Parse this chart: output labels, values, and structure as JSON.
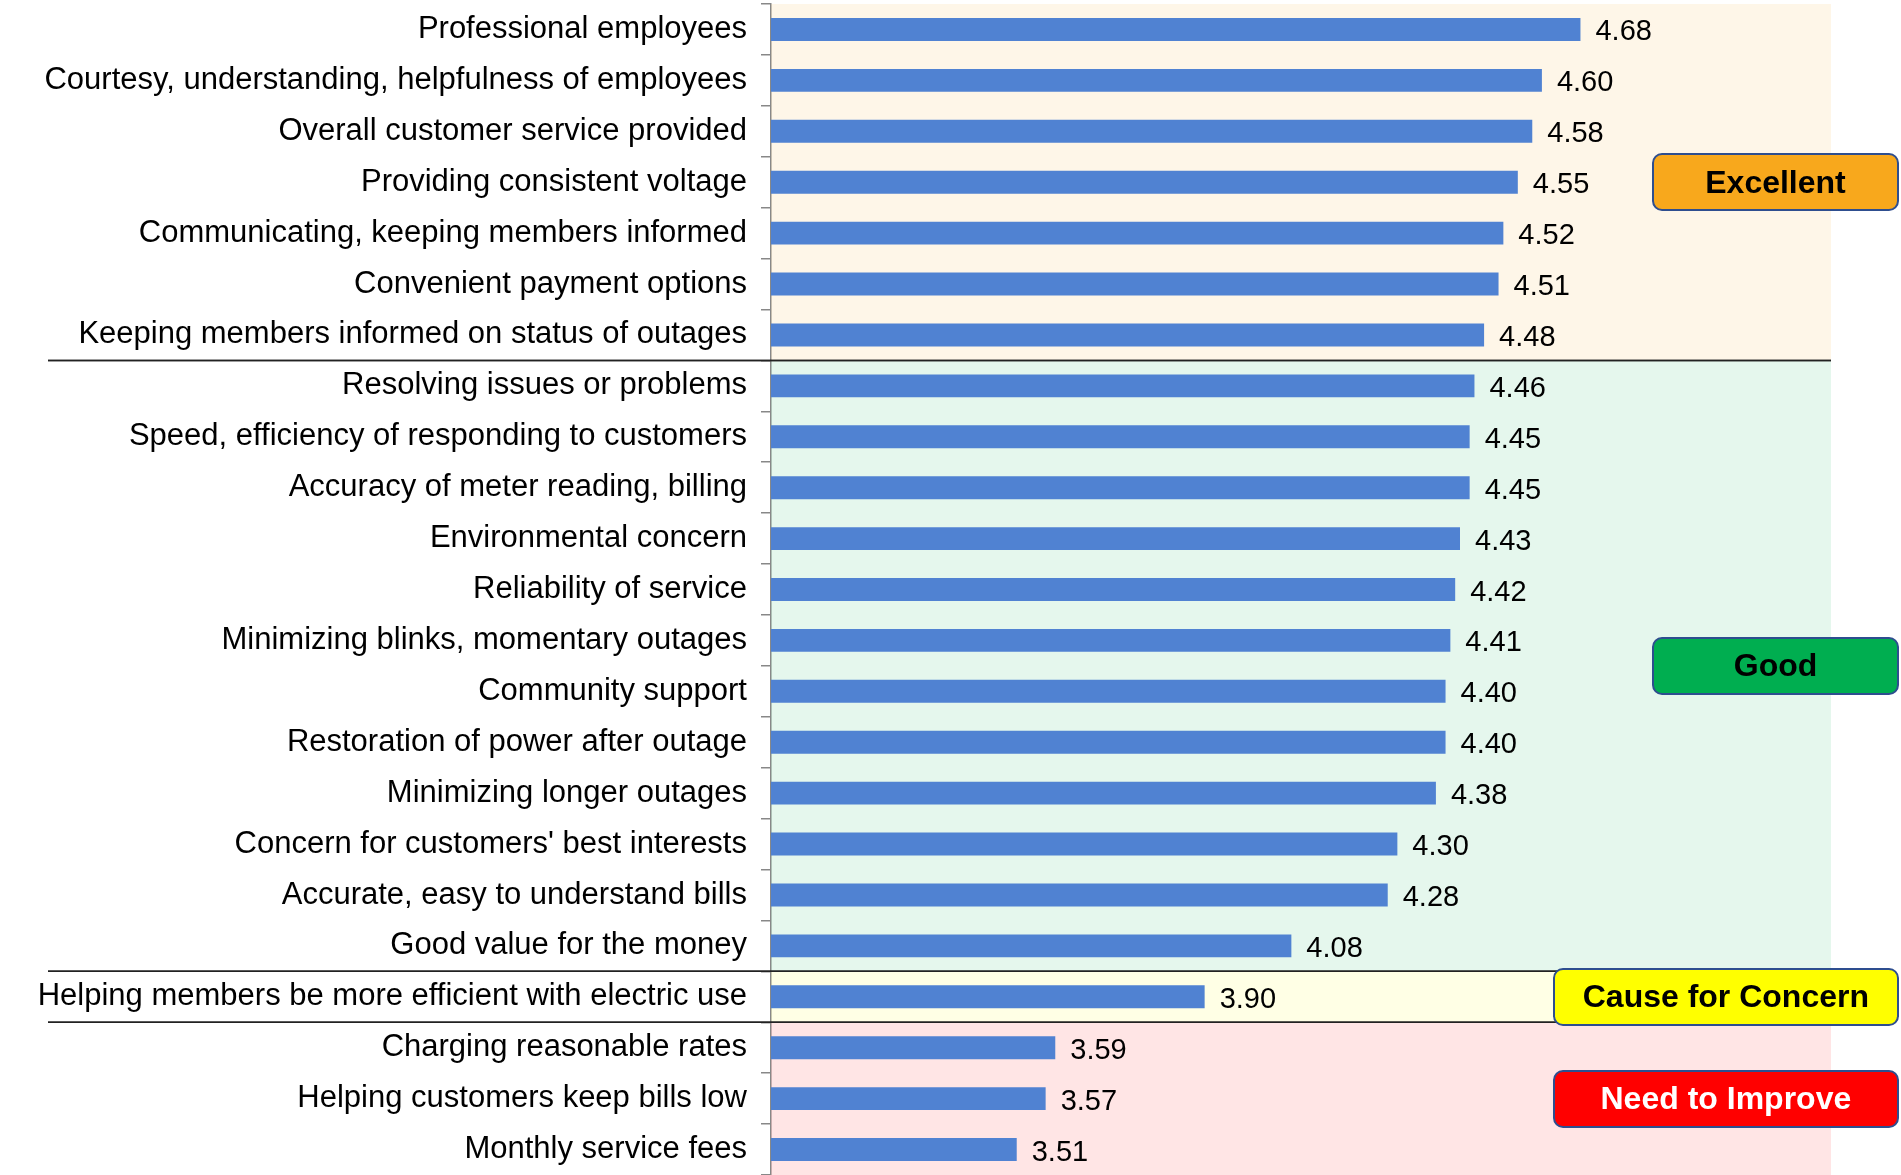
{
  "chart_data": {
    "type": "bar",
    "orientation": "horizontal",
    "categories": [
      "Professional employees",
      "Courtesy, understanding, helpfulness of employees",
      "Overall customer service provided",
      "Providing consistent voltage",
      "Communicating, keeping members informed",
      "Convenient payment options",
      "Keeping members informed on status of outages",
      "Resolving issues or problems",
      "Speed, efficiency of responding to customers",
      "Accuracy of meter reading, billing",
      "Environmental concern",
      "Reliability of service",
      "Minimizing blinks, momentary outages",
      "Community support",
      "Restoration of power after outage",
      "Minimizing longer outages",
      "Concern for customers' best interests",
      "Accurate, easy to understand bills",
      "Good value for the money",
      "Helping members be more efficient with electric use",
      "Charging reasonable rates",
      "Helping customers keep bills low",
      "Monthly service fees"
    ],
    "values": [
      4.68,
      4.6,
      4.58,
      4.55,
      4.52,
      4.51,
      4.48,
      4.46,
      4.45,
      4.45,
      4.43,
      4.42,
      4.41,
      4.4,
      4.4,
      4.38,
      4.3,
      4.28,
      4.08,
      3.9,
      3.59,
      3.57,
      3.51
    ],
    "value_labels": [
      "4.68",
      "4.60",
      "4.58",
      "4.55",
      "4.52",
      "4.51",
      "4.48",
      "4.46",
      "4.45",
      "4.45",
      "4.43",
      "4.42",
      "4.41",
      "4.40",
      "4.40",
      "4.38",
      "4.30",
      "4.28",
      "4.08",
      "3.90",
      "3.59",
      "3.57",
      "3.51"
    ],
    "color": "#5082d2",
    "xlim": [
      3,
      5.2
    ],
    "tick_labels": "y",
    "bands": [
      {
        "axis": "y",
        "from": "Professional employees",
        "to": "Keeping members informed on status of outages",
        "label": "Excellent",
        "color": "#f8a81c"
      },
      {
        "axis": "y",
        "from": "Resolving issues or problems",
        "to": "Good value for the money",
        "label": "Good",
        "color": "#00ae50"
      },
      {
        "axis": "y",
        "from": "Helping members be more efficient with electric use",
        "to": "Helping members be more efficient with electric use",
        "label": "Cause for Concern",
        "color": "#ffff00"
      },
      {
        "axis": "y",
        "from": "Charging reasonable rates",
        "to": "Monthly service fees",
        "label": "Need to Improve",
        "color": "#ff0000"
      }
    ]
  }
}
